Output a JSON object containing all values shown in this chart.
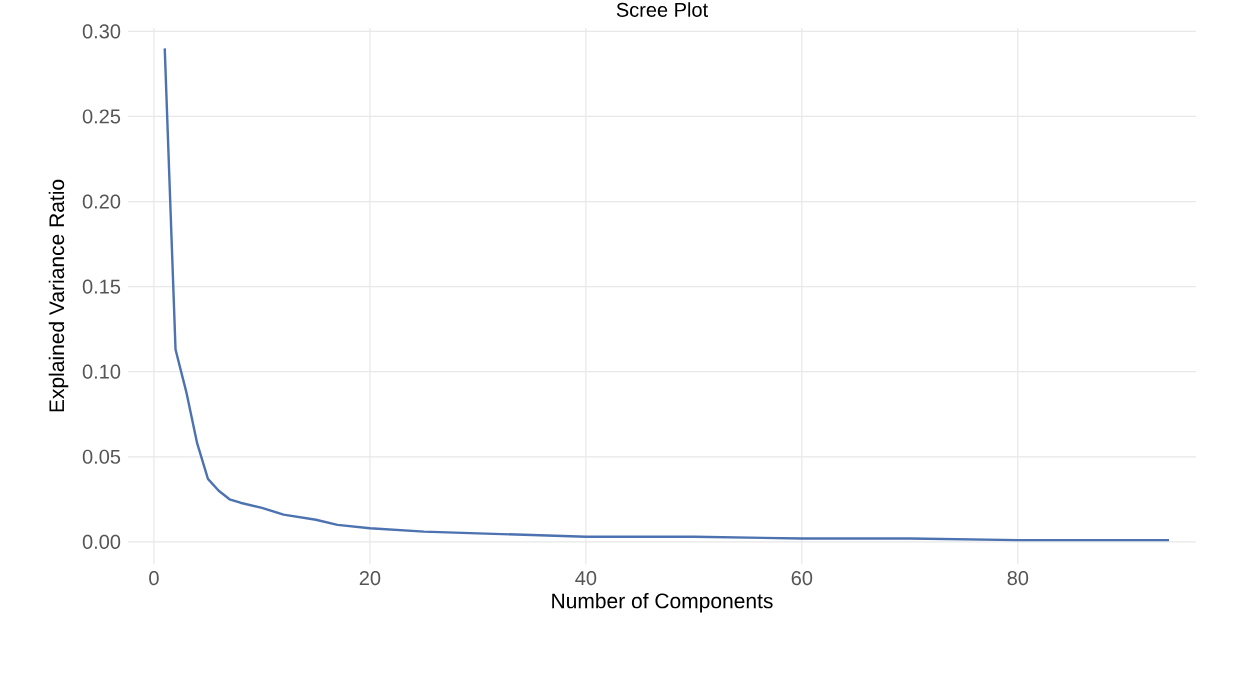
{
  "chart_data": {
    "type": "line",
    "title": "Scree Plot",
    "xlabel": "Number of Components",
    "ylabel": "Explained Variance Ratio",
    "x": [
      1,
      2,
      3,
      4,
      5,
      6,
      7,
      8,
      10,
      12,
      15,
      17,
      20,
      25,
      30,
      35,
      40,
      50,
      60,
      70,
      80,
      94
    ],
    "series": [
      {
        "color": "#4c72b0",
        "values": [
          0.29,
          0.113,
          0.088,
          0.058,
          0.037,
          0.03,
          0.025,
          0.023,
          0.02,
          0.016,
          0.013,
          0.01,
          0.008,
          0.006,
          0.005,
          0.004,
          0.003,
          0.003,
          0.002,
          0.002,
          0.001,
          0.001
        ]
      }
    ],
    "xlim": [
      -2.4,
      96.5
    ],
    "ylim": [
      -0.013,
      0.302
    ],
    "xticks": [
      0,
      20,
      40,
      60,
      80
    ],
    "yticks": [
      {
        "value": 0,
        "label": "0.00"
      },
      {
        "value": 0.05,
        "label": "0.05"
      },
      {
        "value": 0.1,
        "label": "0.10"
      },
      {
        "value": 0.15,
        "label": "0.15"
      },
      {
        "value": 0.2,
        "label": "0.20"
      },
      {
        "value": 0.25,
        "label": "0.25"
      },
      {
        "value": 0.3,
        "label": "0.30"
      }
    ],
    "grid": true,
    "line_style": "solid",
    "marker": "none"
  }
}
